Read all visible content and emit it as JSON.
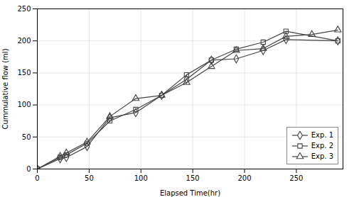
{
  "chart_data": {
    "type": "line",
    "xlabel": "Elapsed Time(hr)",
    "ylabel": "Cummulative flow (ml)",
    "xlim": [
      0,
      295
    ],
    "ylim": [
      0,
      250
    ],
    "xticks": [
      0,
      50,
      100,
      150,
      200,
      250
    ],
    "yticks": [
      0,
      50,
      100,
      150,
      200,
      250
    ],
    "grid": true,
    "legend": "lower right",
    "series": [
      {
        "name": "Exp. 1",
        "color": "#444444",
        "marker": "diamond",
        "x": [
          0,
          22,
          28,
          48,
          70,
          95,
          120,
          144,
          168,
          192,
          218,
          240,
          290
        ],
        "values": [
          0,
          16,
          18,
          35,
          80,
          88,
          115,
          140,
          170,
          172,
          185,
          202,
          200
        ]
      },
      {
        "name": "Exp. 2",
        "color": "#444444",
        "marker": "square",
        "x": [
          0,
          22,
          28,
          48,
          70,
          95,
          120,
          144,
          168,
          192,
          218,
          240,
          290
        ],
        "values": [
          0,
          18,
          22,
          40,
          75,
          93,
          115,
          147,
          170,
          187,
          198,
          215,
          200
        ]
      },
      {
        "name": "Exp. 3",
        "color": "#444444",
        "marker": "triangle",
        "x": [
          0,
          22,
          28,
          48,
          70,
          95,
          120,
          144,
          168,
          192,
          218,
          240,
          265,
          290
        ],
        "values": [
          0,
          20,
          25,
          42,
          82,
          110,
          115,
          135,
          160,
          185,
          188,
          207,
          210,
          217
        ]
      }
    ]
  }
}
